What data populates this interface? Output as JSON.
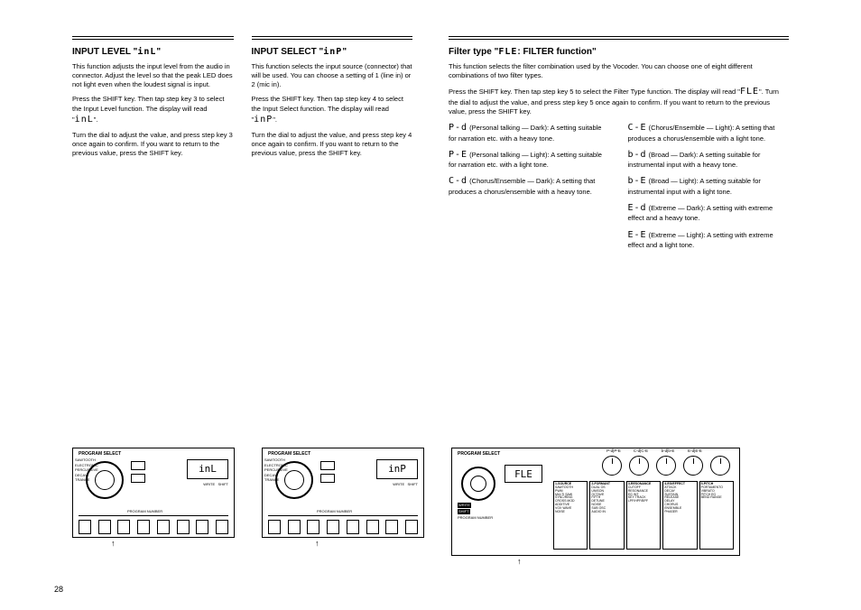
{
  "left": {
    "title_prefix": "INPUT LEVEL \"",
    "title_lcd": "inL",
    "title_suffix": "\"",
    "p1": "This function adjusts the input level from the audio in connector. Adjust the level so that the peak LED does not light even when the loudest signal is input.",
    "p2_a": "Press the SHIFT key. Then tap step key 3 to select the Input Level function. The display will read \"",
    "p2_lcd": "inL",
    "p2_b": "\".",
    "p3": "Turn the dial to adjust the value, and press step key 3 once again to confirm. If you want to return to the previous value, press the SHIFT key.",
    "panel_display": "inL",
    "panel_header": "PROGRAM SELECT",
    "panel_footer": "PROGRAM NUMBER",
    "panel_arrow": "↑"
  },
  "mid": {
    "title_prefix": "INPUT SELECT \"",
    "title_lcd": "inP",
    "title_suffix": "\"",
    "p1": "This function selects the input source (connector) that will be used. You can choose a setting of 1 (line in) or 2 (mic in).",
    "p2_a": "Press the SHIFT key. Then tap step key 4 to select the Input Select function. The display will read \"",
    "p2_lcd": "inP",
    "p2_b": "\".",
    "p3": "Turn the dial to adjust the value, and press step key 4 once again to confirm. If you want to return to the previous value, press the SHIFT key.",
    "panel_display": "inP",
    "panel_header": "PROGRAM SELECT",
    "panel_footer": "PROGRAM NUMBER",
    "panel_arrow": "↑"
  },
  "right": {
    "title_prefix": "Filter type \"",
    "title_lcd": "FLE",
    "title_suffix": ": FILTER function\"",
    "intro": "This function selects the filter combination used by the Vocoder. You can choose one of eight different combinations of two filter types.",
    "p_a": "Press the SHIFT key. Then tap step key 5 to select the Filter Type function. The display will read \"",
    "p_lcd": "FLE",
    "p_b": "\". Turn the dial to adjust the value, and press step key 5 once again to confirm. If you want to return to the previous value, press the SHIFT key.",
    "items": [
      {
        "lcd": "P-d",
        "text": "(Personal talking — Dark): A setting suitable for narration etc. with a heavy tone."
      },
      {
        "lcd": "P-E",
        "text": "(Personal talking — Light): A setting suitable for narration etc. with a light tone."
      },
      {
        "lcd": "C-d",
        "text": "(Chorus/Ensemble — Dark): A setting that produces a chorus/ensemble with a heavy tone."
      },
      {
        "lcd": "C-E",
        "text": "(Chorus/Ensemble — Light): A setting that produces a chorus/ensemble with a light tone."
      },
      {
        "lcd": "b-d",
        "text": "(Broad — Dark): A setting suitable for instrumental input with a heavy tone."
      },
      {
        "lcd": "b-E",
        "text": "(Broad — Light): A setting suitable for instrumental input with a light tone."
      },
      {
        "lcd": "E-d",
        "text": "(Extreme — Dark): A setting with extreme effect and a heavy tone."
      },
      {
        "lcd": "E-E",
        "text": "(Extreme — Light): A setting with extreme effect and a light tone."
      }
    ],
    "panel_display": "FLE",
    "panel_header": "PROGRAM SELECT",
    "knob_labels": [
      "P-d|P-E",
      "C-d|C-E",
      "b-d|b-E",
      "E-d|E-E",
      ""
    ],
    "knob_heads": [
      "1-SOURCE",
      "2-FORMANT",
      "3-RESONANCE",
      "4-EG/EFFECT",
      "5-PITCH"
    ],
    "table_cols": [
      "SAWTOOTH\nPWM\nMULTI SAW\nSYNC/RING\nCROSS MOD\nADDITIVE\nVOX WAVE\nNOISE",
      "DUAL OS\nUNISON\nOCTAVE\nFIFTH\nDETUNE\nNOISE\nSUB OSC\nAUDIO IN",
      "CUTOFF\nRESONANCE\nEG INT\nKEY TRACK\nLPF/HPF/BPF",
      "ATTACK\nDECAY\nSUSTAIN\nRELEASE\nDELAY\nCHORUS\nENSEMBLE\nPHASER",
      "PORTAMENTO\nVIBRATO\nPITCH EG\nBEND RANGE"
    ],
    "left_mini": [
      "WRITE",
      "SHIFT",
      "PROGRAM NUMBER"
    ]
  },
  "style": {
    "bg": "#ffffff",
    "text": "#000000",
    "lcd_font": "monospace",
    "fontsize_body": 7.5,
    "fontsize_title": 10,
    "fontsize_lcd": 10
  },
  "pagenum": "28"
}
